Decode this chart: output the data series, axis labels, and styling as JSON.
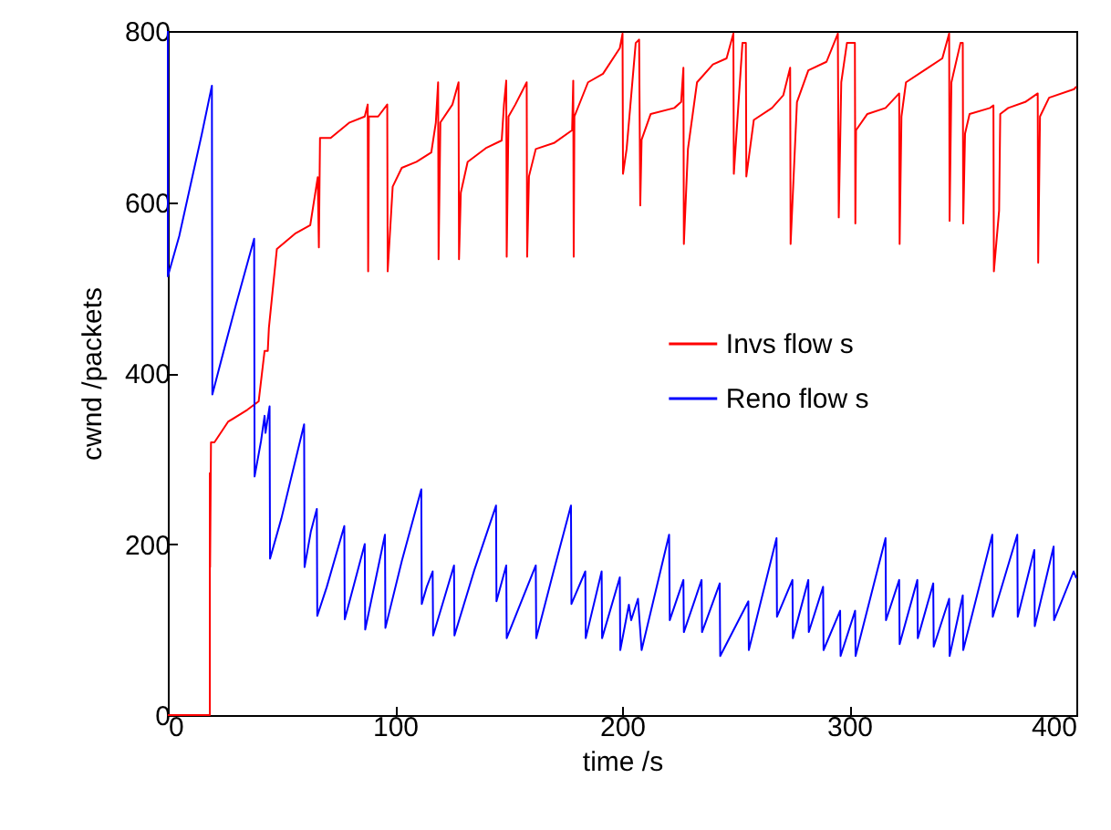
{
  "chart_data": {
    "type": "line",
    "xlabel": "time /s",
    "ylabel": "cwnd /packets",
    "xlim": [
      0,
      400
    ],
    "ylim": [
      0,
      800
    ],
    "xticks": [
      0,
      100,
      200,
      300,
      400
    ],
    "yticks": [
      0,
      200,
      400,
      600,
      800
    ],
    "grid": false,
    "legend": "right",
    "line_style": "solid",
    "marker": "none",
    "series": [
      {
        "name": "Invs flow s",
        "color": "#ff0000",
        "x": [
          0,
          18.5,
          18.5,
          18.6,
          19,
          20.5,
          26.5,
          35,
          40,
          42.6,
          44,
          44.5,
          48,
          56,
          62.7,
          66,
          66.5,
          67,
          71.7,
          80,
          86.7,
          88,
          88.2,
          88.5,
          92.6,
          96.6,
          96.8,
          99,
          103,
          109.5,
          116,
          118,
          119,
          119.2,
          120,
          125.3,
          128,
          128.2,
          129,
          132,
          140,
          147,
          148,
          149,
          149.2,
          150,
          153,
          158,
          158.2,
          159,
          162,
          170,
          178,
          178.5,
          178.7,
          179,
          185,
          191.6,
          199,
          200.2,
          200.4,
          202,
          206,
          207.5,
          208,
          208.6,
          212.6,
          223,
          226,
          227,
          227.2,
          229,
          233,
          240,
          246,
          249,
          249.2,
          253,
          254.5,
          254.7,
          258,
          266,
          271,
          274,
          274.2,
          277,
          282,
          290,
          295,
          295.4,
          296.5,
          299,
          302.5,
          302.7,
          303,
          308,
          316,
          322,
          322.2,
          323,
          325,
          333,
          341,
          344,
          344.2,
          345,
          349,
          350,
          350.2,
          351,
          353,
          362,
          363.5,
          363.7,
          366,
          366.5,
          370,
          377.5,
          383,
          383.2,
          384,
          388,
          399,
          400
        ],
        "values": [
          0,
          0,
          283,
          173,
          319,
          319,
          343,
          357,
          367,
          426,
          426,
          453,
          545,
          563,
          573,
          629,
          547,
          675,
          675,
          693,
          700,
          714,
          519,
          700,
          700,
          714,
          519,
          618,
          640,
          647,
          658,
          693,
          740,
          533,
          693,
          714,
          740,
          533,
          611,
          647,
          663,
          672,
          714,
          742,
          536,
          700,
          714,
          740,
          536,
          630,
          662,
          669,
          684,
          742,
          536,
          700,
          740,
          750,
          780,
          797,
          633,
          662,
          786,
          790,
          596,
          673,
          703,
          710,
          717,
          757,
          551,
          662,
          740,
          761,
          768,
          797,
          633,
          786,
          786,
          630,
          696,
          710,
          725,
          757,
          551,
          717,
          754,
          764,
          797,
          582,
          740,
          786,
          786,
          575,
          684,
          703,
          710,
          727,
          551,
          700,
          740,
          754,
          768,
          797,
          578,
          740,
          786,
          786,
          575,
          680,
          703,
          710,
          713,
          519,
          590,
          703,
          710,
          717,
          727,
          529,
          700,
          722,
          732,
          735
        ]
      },
      {
        "name": "Reno flow s",
        "color": "#0000ff",
        "x": [
          0,
          0,
          5,
          10,
          15,
          19.4,
          19.6,
          25,
          30,
          38,
          38.2,
          41,
          42.6,
          43,
          44.8,
          45,
          50,
          55,
          60,
          60.2,
          63,
          65.6,
          65.8,
          70,
          77.7,
          77.9,
          86.7,
          86.9,
          95.6,
          95.8,
          103,
          111.6,
          111.8,
          114,
          116.6,
          116.8,
          126,
          126.2,
          135,
          144.5,
          144.7,
          149,
          149.2,
          162,
          162.2,
          170,
          177.5,
          177.7,
          183.8,
          184,
          191,
          191.2,
          199,
          199.2,
          203,
          204,
          207,
          208.6,
          220.7,
          221,
          227,
          227.2,
          235,
          235.2,
          243,
          243.2,
          255.6,
          255.8,
          268,
          268.2,
          275,
          275.2,
          282,
          282.2,
          288.5,
          288.7,
          296,
          296.2,
          302.6,
          302.8,
          316,
          316.2,
          322,
          322.2,
          330,
          330.2,
          337,
          337.2,
          344,
          344.2,
          350,
          350.2,
          363,
          363.2,
          374,
          374.2,
          381.5,
          381.7,
          390,
          390.2,
          398.8,
          400
        ],
        "values": [
          800,
          513,
          560,
          620,
          680,
          736,
          375,
          430,
          480,
          557,
          279,
          320,
          350,
          330,
          361,
          183,
          230,
          285,
          340,
          173,
          215,
          241,
          116,
          150,
          221,
          112,
          200,
          100,
          211,
          102,
          180,
          264,
          130,
          150,
          168,
          93,
          175,
          93,
          170,
          245,
          133,
          175,
          90,
          175,
          90,
          170,
          245,
          130,
          168,
          90,
          168,
          90,
          161,
          76,
          129,
          111,
          136,
          76,
          211,
          111,
          158,
          97,
          158,
          97,
          154,
          69,
          133,
          76,
          207,
          115,
          158,
          90,
          158,
          97,
          150,
          76,
          122,
          69,
          122,
          69,
          207,
          111,
          158,
          83,
          158,
          90,
          154,
          80,
          136,
          69,
          140,
          76,
          211,
          115,
          211,
          115,
          193,
          104,
          197,
          111,
          168,
          160
        ]
      }
    ]
  }
}
